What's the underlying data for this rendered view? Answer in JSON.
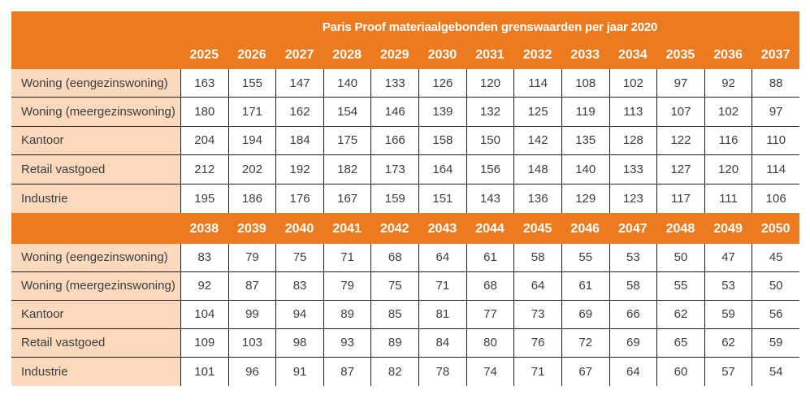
{
  "page_title": "Paris Proof materiaalgebonden grenswaarden per jaar 2020",
  "colors": {
    "orange": "#EB7B1E",
    "peach": "#FAD9BC",
    "border": "#1C1C1A",
    "text": "#3D3D3D",
    "header_text": "#FFFFFF",
    "page_bg": "#FFFFFF"
  },
  "chart_data": {
    "type": "table",
    "title": "Paris Proof materiaalgebonden grenswaarden per jaar 2020",
    "blocks": [
      {
        "years": [
          "2025",
          "2026",
          "2027",
          "2028",
          "2029",
          "2030",
          "2031",
          "2032",
          "2033",
          "2034",
          "2035",
          "2036",
          "2037"
        ],
        "rows": [
          {
            "label": "Woning (eengezinswoning)",
            "values": [
              163,
              155,
              147,
              140,
              133,
              126,
              120,
              114,
              108,
              102,
              97,
              92,
              88
            ]
          },
          {
            "label": "Woning (meergezinswoning)",
            "values": [
              180,
              171,
              162,
              154,
              146,
              139,
              132,
              125,
              119,
              113,
              107,
              102,
              97
            ]
          },
          {
            "label": "Kantoor",
            "values": [
              204,
              194,
              184,
              175,
              166,
              158,
              150,
              142,
              135,
              128,
              122,
              116,
              110
            ]
          },
          {
            "label": "Retail vastgoed",
            "values": [
              212,
              202,
              192,
              182,
              173,
              164,
              156,
              148,
              140,
              133,
              127,
              120,
              114
            ]
          },
          {
            "label": "Industrie",
            "values": [
              195,
              186,
              176,
              167,
              159,
              151,
              143,
              136,
              129,
              123,
              117,
              111,
              106
            ]
          }
        ]
      },
      {
        "years": [
          "2038",
          "2039",
          "2040",
          "2041",
          "2042",
          "2043",
          "2044",
          "2045",
          "2046",
          "2047",
          "2048",
          "2049",
          "2050"
        ],
        "rows": [
          {
            "label": "Woning (eengezinswoning)",
            "values": [
              83,
              79,
              75,
              71,
              68,
              64,
              61,
              58,
              55,
              53,
              50,
              47,
              45
            ]
          },
          {
            "label": "Woning (meergezinswoning)",
            "values": [
              92,
              87,
              83,
              79,
              75,
              71,
              68,
              64,
              61,
              58,
              55,
              53,
              50
            ]
          },
          {
            "label": "Kantoor",
            "values": [
              104,
              99,
              94,
              89,
              85,
              81,
              77,
              73,
              69,
              66,
              62,
              59,
              56
            ]
          },
          {
            "label": "Retail vastgoed",
            "values": [
              109,
              103,
              98,
              93,
              89,
              84,
              80,
              76,
              72,
              69,
              65,
              62,
              59
            ]
          },
          {
            "label": "Industrie",
            "values": [
              101,
              96,
              91,
              87,
              82,
              78,
              74,
              71,
              67,
              64,
              60,
              57,
              54
            ]
          }
        ]
      }
    ]
  }
}
